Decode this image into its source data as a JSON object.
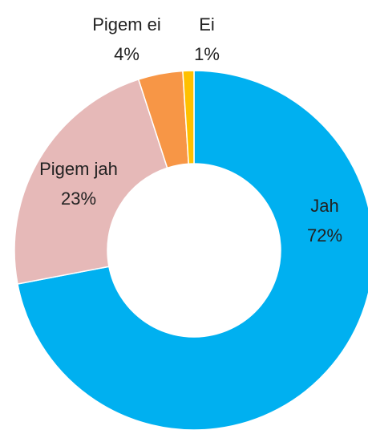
{
  "chart_data": {
    "type": "donut",
    "categories": [
      "Jah",
      "Pigem jah",
      "Pigem ei",
      "Ei"
    ],
    "values": [
      72,
      23,
      4,
      1
    ],
    "value_labels": [
      "72%",
      "23%",
      "4%",
      "1%"
    ],
    "colors": [
      "#00b0f0",
      "#e6b9b8",
      "#f79646",
      "#ffc000"
    ]
  }
}
